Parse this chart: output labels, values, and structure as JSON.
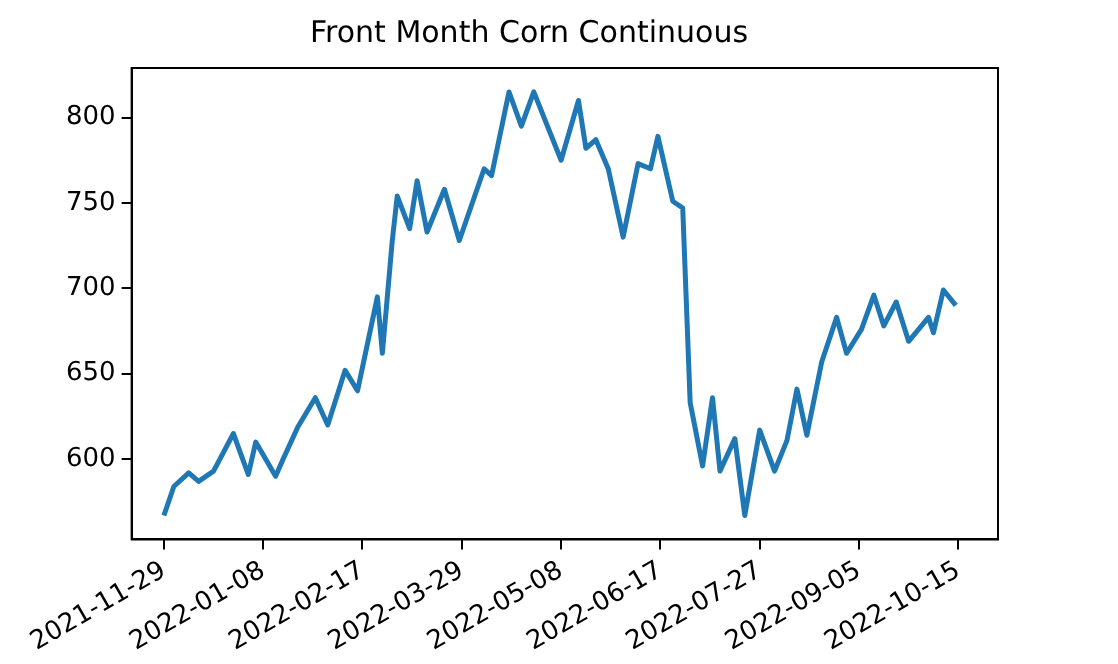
{
  "chart_data": {
    "type": "line",
    "title": "Front Month Corn Continuous",
    "x": [
      "2021-11-29",
      "2021-12-03",
      "2021-12-09",
      "2021-12-13",
      "2021-12-19",
      "2021-12-27",
      "2022-01-02",
      "2022-01-05",
      "2022-01-13",
      "2022-01-16",
      "2022-01-22",
      "2022-01-29",
      "2022-02-03",
      "2022-02-10",
      "2022-02-15",
      "2022-02-23",
      "2022-02-25",
      "2022-03-01",
      "2022-03-03",
      "2022-03-08",
      "2022-03-11",
      "2022-03-15",
      "2022-03-22",
      "2022-03-28",
      "2022-04-07",
      "2022-04-10",
      "2022-04-17",
      "2022-04-22",
      "2022-04-27",
      "2022-05-08",
      "2022-05-15",
      "2022-05-18",
      "2022-05-22",
      "2022-05-27",
      "2022-06-02",
      "2022-06-08",
      "2022-06-13",
      "2022-06-16",
      "2022-06-22",
      "2022-06-26",
      "2022-06-29",
      "2022-07-04",
      "2022-07-08",
      "2022-07-11",
      "2022-07-17",
      "2022-07-21",
      "2022-07-27",
      "2022-08-02",
      "2022-08-07",
      "2022-08-11",
      "2022-08-15",
      "2022-08-21",
      "2022-08-27",
      "2022-08-31",
      "2022-09-06",
      "2022-09-11",
      "2022-09-15",
      "2022-09-20",
      "2022-09-25",
      "2022-10-03",
      "2022-10-05",
      "2022-10-09",
      "2022-10-14"
    ],
    "series": [
      {
        "color": "#1f77b4",
        "values": [
          567,
          584,
          592,
          587,
          593,
          615,
          591,
          610,
          590,
          600,
          619,
          636,
          620,
          652,
          640,
          695,
          662,
          728,
          754,
          735,
          763,
          733,
          758,
          728,
          770,
          766,
          815,
          795,
          815,
          775,
          810,
          782,
          787,
          770,
          730,
          773,
          770,
          789,
          751,
          747,
          633,
          596,
          636,
          593,
          612,
          567,
          617,
          593,
          611,
          641,
          614,
          657,
          683,
          662,
          676,
          696,
          678,
          692,
          669,
          683,
          674,
          699,
          690
        ]
      }
    ],
    "xlim": [
      "2021-11-16",
      "2022-10-31"
    ],
    "xticks": [
      "2021-11-29",
      "2022-01-08",
      "2022-02-17",
      "2022-03-29",
      "2022-05-08",
      "2022-06-17",
      "2022-07-27",
      "2022-09-05",
      "2022-10-15"
    ],
    "ylim": [
      553,
      829
    ],
    "yticks": [
      600,
      650,
      700,
      750,
      800
    ],
    "grid": false,
    "legend": false,
    "marker": "none",
    "line_style": "solid"
  }
}
